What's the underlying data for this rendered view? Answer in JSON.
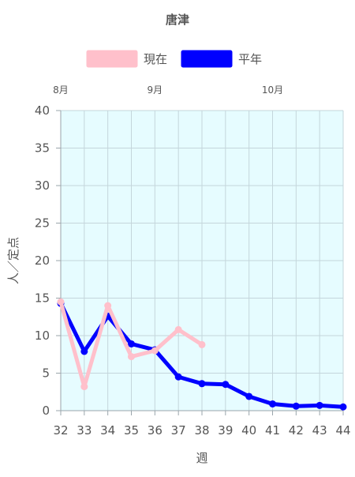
{
  "chart_data": {
    "type": "line",
    "title": "唐津",
    "xlabel": "週",
    "ylabel": "人／定点",
    "x": [
      32,
      33,
      34,
      35,
      36,
      37,
      38,
      39,
      40,
      41,
      42,
      43,
      44
    ],
    "xlim": [
      32,
      44
    ],
    "ylim": [
      0,
      40
    ],
    "yticks": [
      0,
      5,
      10,
      15,
      20,
      25,
      30,
      35,
      40
    ],
    "month_labels": [
      {
        "label": "8月",
        "week": 32
      },
      {
        "label": "9月",
        "week": 36
      },
      {
        "label": "10月",
        "week": 41
      }
    ],
    "grid": true,
    "legend_position": "top",
    "plot_background": "#e6fcff",
    "series": [
      {
        "name": "現在",
        "color": "#ffc0cb",
        "values": [
          14.5,
          3.2,
          14.0,
          7.2,
          8.0,
          10.8,
          8.8,
          null,
          null,
          null,
          null,
          null,
          null
        ]
      },
      {
        "name": "平年",
        "color": "#0000ff",
        "values": [
          14.3,
          7.9,
          12.6,
          8.9,
          8.1,
          4.5,
          3.6,
          3.5,
          1.9,
          0.9,
          0.6,
          0.7,
          0.5
        ]
      }
    ]
  }
}
